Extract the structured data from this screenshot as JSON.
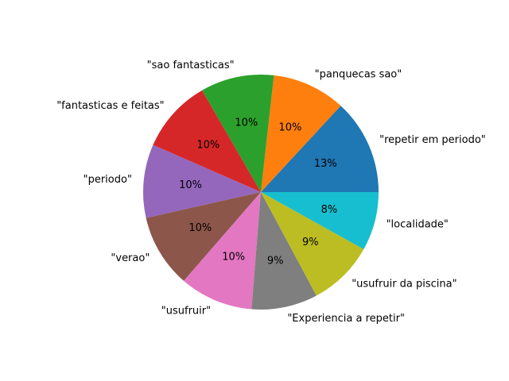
{
  "chart_data": {
    "type": "pie",
    "categories": [
      "\"repetir em periodo\"",
      "\"panquecas sao\"",
      "\"sao fantasticas\"",
      "\"fantasticas e feitas\"",
      "\"periodo\"",
      "\"verao\"",
      "\"usufruir\"",
      "\"Experiencia a repetir\"",
      "\"usufruir da piscina\"",
      "\"localidade\""
    ],
    "values": [
      13,
      10,
      10,
      10,
      10,
      10,
      10,
      9,
      9,
      8
    ],
    "percent_labels": [
      "13%",
      "10%",
      "10%",
      "10%",
      "10%",
      "10%",
      "10%",
      "9%",
      "9%",
      "8%"
    ],
    "colors": [
      "#1f77b4",
      "#ff7f0e",
      "#2ca02c",
      "#d62728",
      "#9467bd",
      "#8c564b",
      "#e377c2",
      "#7f7f7f",
      "#bcbd22",
      "#17becf"
    ],
    "start_angle_deg": 0,
    "direction": "counterclockwise"
  }
}
